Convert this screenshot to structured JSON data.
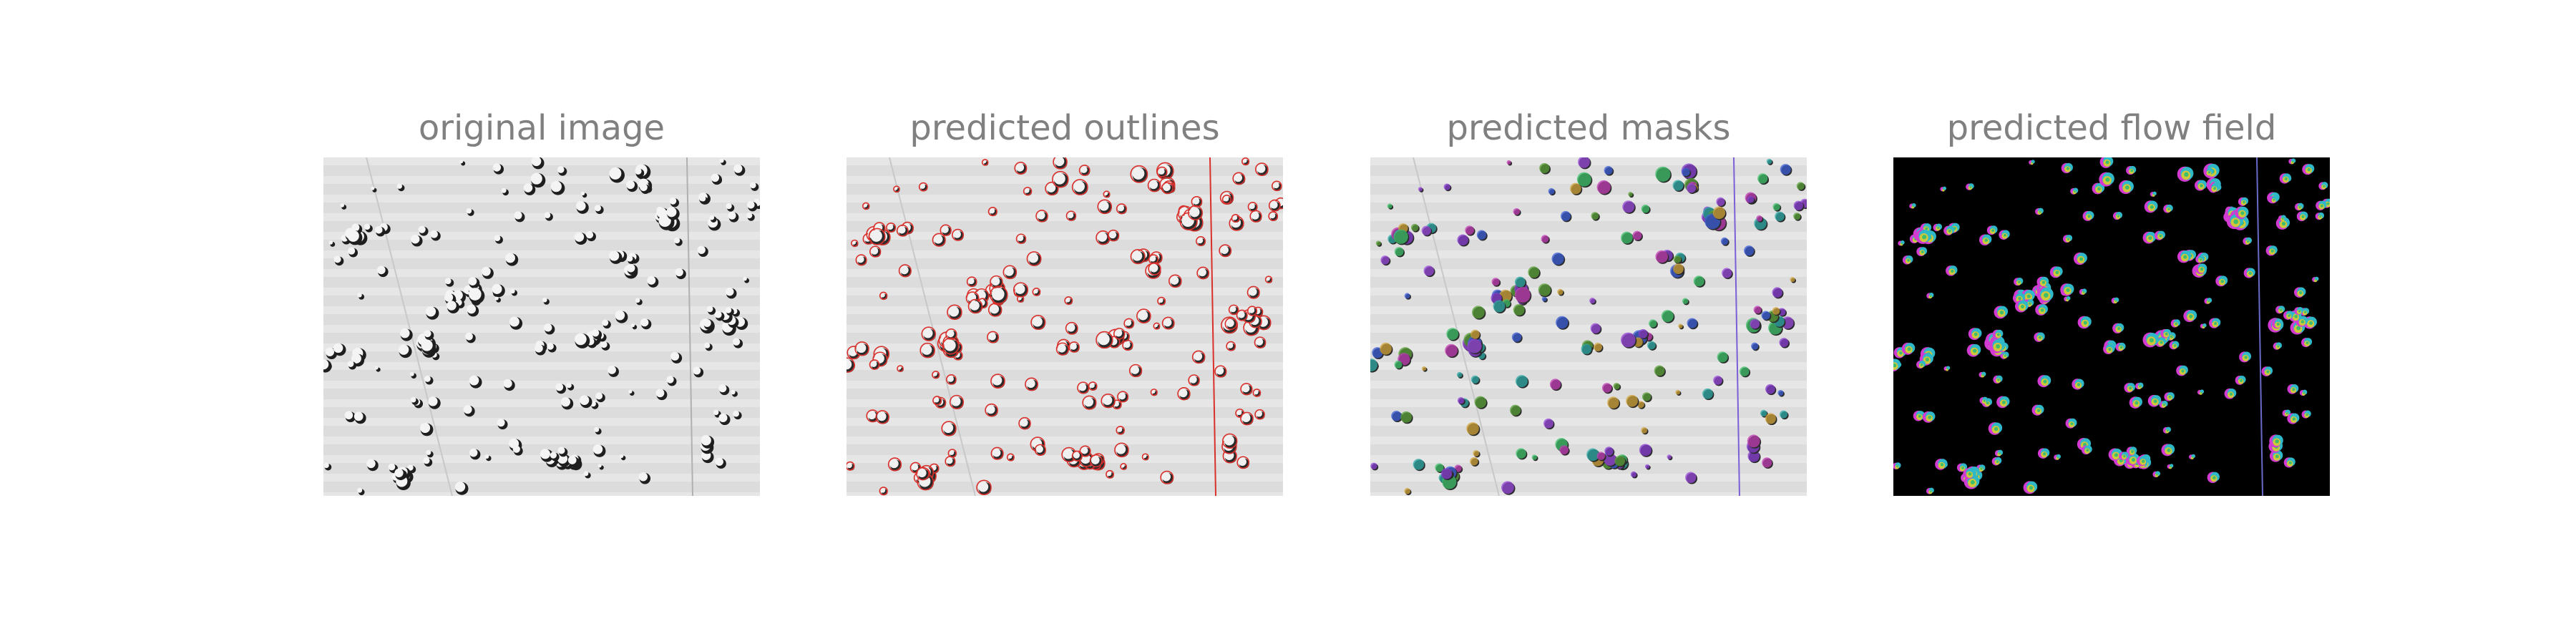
{
  "panels": [
    {
      "title": "original image",
      "style": "original"
    },
    {
      "title": "predicted outlines",
      "style": "outlines"
    },
    {
      "title": "predicted masks",
      "style": "masks"
    },
    {
      "title": "predicted flow field",
      "style": "flow"
    }
  ],
  "colors": {
    "title": "#808080",
    "background_light": "#dcdcdc",
    "background_dark": "#000000",
    "outline": "#d9302c"
  }
}
